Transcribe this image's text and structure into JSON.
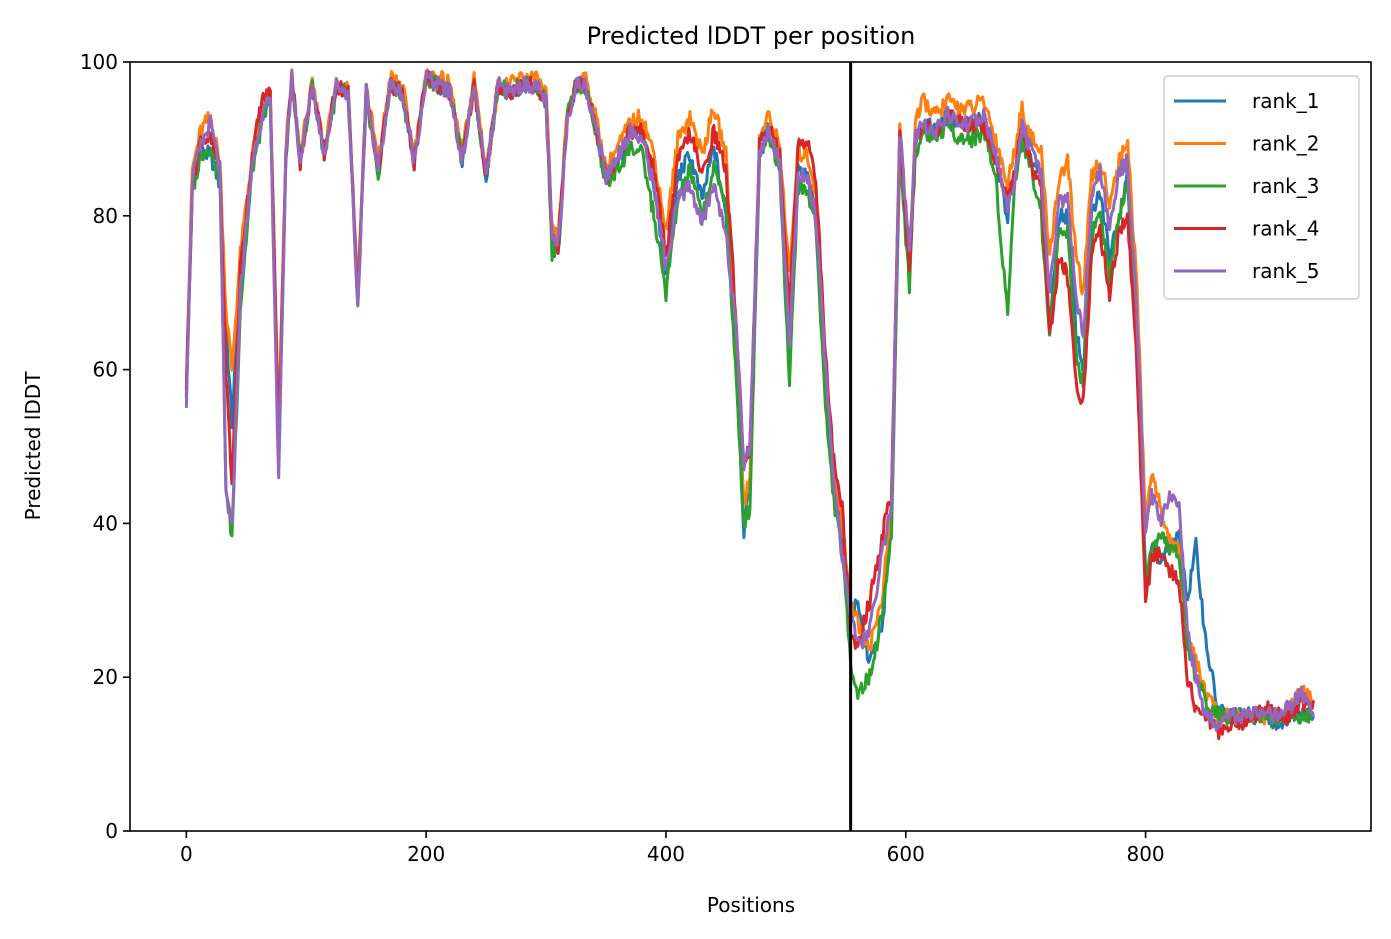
{
  "chart_data": {
    "type": "line",
    "title": "Predicted lDDT per position",
    "xlabel": "Positions",
    "ylabel": "Predicted lDDT",
    "xlim": [
      -47,
      988
    ],
    "ylim": [
      0,
      100
    ],
    "xticks": [
      0,
      200,
      400,
      600,
      800
    ],
    "yticks": [
      0,
      20,
      40,
      60,
      80,
      100
    ],
    "grid": false,
    "legend_position": "top-right",
    "vline_x": 554,
    "vline_color": "#000000",
    "knots_x": [
      0,
      5,
      12,
      20,
      28,
      33,
      38,
      45,
      55,
      63,
      70,
      77,
      83,
      88,
      95,
      105,
      115,
      125,
      135,
      143,
      150,
      160,
      170,
      180,
      190,
      200,
      210,
      220,
      230,
      240,
      250,
      260,
      270,
      280,
      290,
      300,
      305,
      310,
      318,
      325,
      332,
      340,
      350,
      360,
      370,
      380,
      390,
      400,
      410,
      420,
      430,
      440,
      450,
      458,
      465,
      470,
      478,
      485,
      495,
      503,
      510,
      518,
      525,
      533,
      540,
      547,
      554,
      560,
      570,
      580,
      588,
      595,
      603,
      608,
      615,
      625,
      635,
      645,
      655,
      665,
      675,
      685,
      690,
      697,
      705,
      713,
      720,
      728,
      735,
      742,
      748,
      755,
      762,
      770,
      778,
      785,
      793,
      800,
      805,
      812,
      820,
      828,
      835,
      842,
      850,
      860,
      870,
      880,
      890,
      900,
      910,
      920,
      930,
      940
    ],
    "series": [
      {
        "name": "rank_1",
        "color": "#1f77b4",
        "values": [
          57,
          84,
          88,
          88,
          84,
          66,
          53,
          72,
          87,
          93,
          95,
          50,
          88,
          98,
          87,
          97,
          88,
          97,
          96,
          69,
          96,
          86,
          97,
          96,
          87,
          98,
          97,
          96,
          87,
          97,
          85,
          97,
          96,
          97,
          97,
          95,
          76,
          75,
          93,
          97,
          97,
          93,
          84,
          87,
          90,
          91,
          84,
          72,
          85,
          88,
          82,
          89,
          80,
          62,
          39,
          45,
          88,
          91,
          87,
          66,
          86,
          85,
          80,
          58,
          45,
          38,
          29,
          29,
          22,
          26,
          40,
          90,
          72,
          90,
          92,
          91,
          93,
          92,
          92,
          93,
          87,
          80,
          85,
          92,
          87,
          85,
          65,
          80,
          80,
          65,
          60,
          80,
          83,
          75,
          80,
          86,
          65,
          33,
          37,
          35,
          37,
          38,
          30,
          37,
          25,
          16,
          15,
          15,
          15,
          15,
          14,
          15,
          16,
          15
        ]
      },
      {
        "name": "rank_2",
        "color": "#ff7f0e",
        "values": [
          59,
          86,
          91,
          93,
          87,
          68,
          60,
          75,
          88,
          94,
          96,
          52,
          89,
          98,
          88,
          97,
          89,
          97,
          97,
          70,
          97,
          87,
          98,
          97,
          88,
          98,
          98,
          97,
          88,
          98,
          86,
          97,
          97,
          98,
          98,
          96,
          78,
          77,
          94,
          97,
          98,
          94,
          86,
          89,
          92,
          93,
          88,
          78,
          90,
          93,
          88,
          94,
          88,
          66,
          42,
          47,
          90,
          93,
          89,
          72,
          88,
          88,
          83,
          60,
          47,
          40,
          30,
          27,
          24,
          30,
          42,
          92,
          74,
          92,
          95,
          93,
          95,
          94,
          94,
          95,
          90,
          84,
          88,
          94,
          90,
          88,
          75,
          85,
          87,
          75,
          70,
          85,
          87,
          82,
          87,
          90,
          70,
          40,
          47,
          42,
          38,
          36,
          26,
          22,
          18,
          15,
          15,
          15,
          15,
          15,
          15,
          16,
          18,
          17
        ]
      },
      {
        "name": "rank_3",
        "color": "#2ca02c",
        "values": [
          57,
          83,
          88,
          89,
          85,
          45,
          38,
          68,
          86,
          92,
          95,
          49,
          87,
          98,
          87,
          97,
          88,
          96,
          96,
          68,
          96,
          85,
          97,
          96,
          87,
          98,
          97,
          96,
          87,
          97,
          85,
          97,
          96,
          97,
          97,
          95,
          75,
          76,
          93,
          97,
          97,
          92,
          84,
          86,
          89,
          88,
          80,
          70,
          82,
          86,
          80,
          86,
          82,
          60,
          40,
          42,
          88,
          91,
          86,
          58,
          84,
          83,
          79,
          55,
          43,
          36,
          22,
          18,
          20,
          28,
          38,
          88,
          71,
          88,
          91,
          90,
          92,
          90,
          90,
          91,
          85,
          67,
          83,
          90,
          86,
          80,
          65,
          78,
          78,
          62,
          58,
          78,
          80,
          72,
          80,
          84,
          62,
          32,
          36,
          38,
          37,
          36,
          24,
          20,
          17,
          15,
          15,
          15,
          15,
          15,
          14,
          15,
          15,
          15
        ]
      },
      {
        "name": "rank_4",
        "color": "#d62728",
        "values": [
          58,
          84,
          90,
          90,
          86,
          60,
          45,
          73,
          88,
          95,
          96,
          51,
          88,
          98,
          87,
          97,
          88,
          97,
          96,
          69,
          96,
          86,
          97,
          96,
          87,
          98,
          97,
          96,
          87,
          97,
          85,
          97,
          96,
          97,
          97,
          95,
          77,
          76,
          93,
          97,
          97,
          93,
          85,
          88,
          91,
          91,
          86,
          75,
          87,
          91,
          85,
          91,
          86,
          68,
          48,
          50,
          89,
          92,
          88,
          68,
          89,
          90,
          85,
          62,
          48,
          42,
          25,
          24,
          30,
          38,
          44,
          90,
          73,
          90,
          92,
          91,
          93,
          92,
          92,
          92,
          87,
          82,
          85,
          92,
          86,
          84,
          64,
          75,
          72,
          58,
          56,
          75,
          78,
          70,
          78,
          80,
          60,
          30,
          35,
          36,
          34,
          32,
          20,
          16,
          15,
          13,
          14,
          14,
          15,
          16,
          15,
          15,
          17,
          16
        ]
      },
      {
        "name": "rank_5",
        "color": "#9467bd",
        "values": [
          56,
          85,
          89,
          92,
          86,
          44,
          39,
          70,
          87,
          93,
          95,
          45,
          88,
          98,
          87,
          97,
          88,
          97,
          96,
          68,
          96,
          86,
          97,
          96,
          87,
          98,
          97,
          96,
          87,
          97,
          85,
          97,
          96,
          97,
          97,
          95,
          77,
          76,
          93,
          97,
          97,
          93,
          85,
          88,
          91,
          90,
          84,
          73,
          82,
          84,
          79,
          84,
          78,
          66,
          48,
          50,
          88,
          91,
          87,
          63,
          85,
          85,
          80,
          60,
          46,
          36,
          28,
          24,
          26,
          36,
          42,
          91,
          75,
          90,
          92,
          91,
          93,
          92,
          92,
          93,
          88,
          81,
          84,
          92,
          88,
          85,
          70,
          82,
          82,
          70,
          64,
          83,
          86,
          78,
          86,
          87,
          66,
          38,
          44,
          40,
          44,
          42,
          26,
          20,
          15,
          14,
          15,
          15,
          15,
          15,
          15,
          16,
          18,
          15
        ]
      }
    ]
  }
}
